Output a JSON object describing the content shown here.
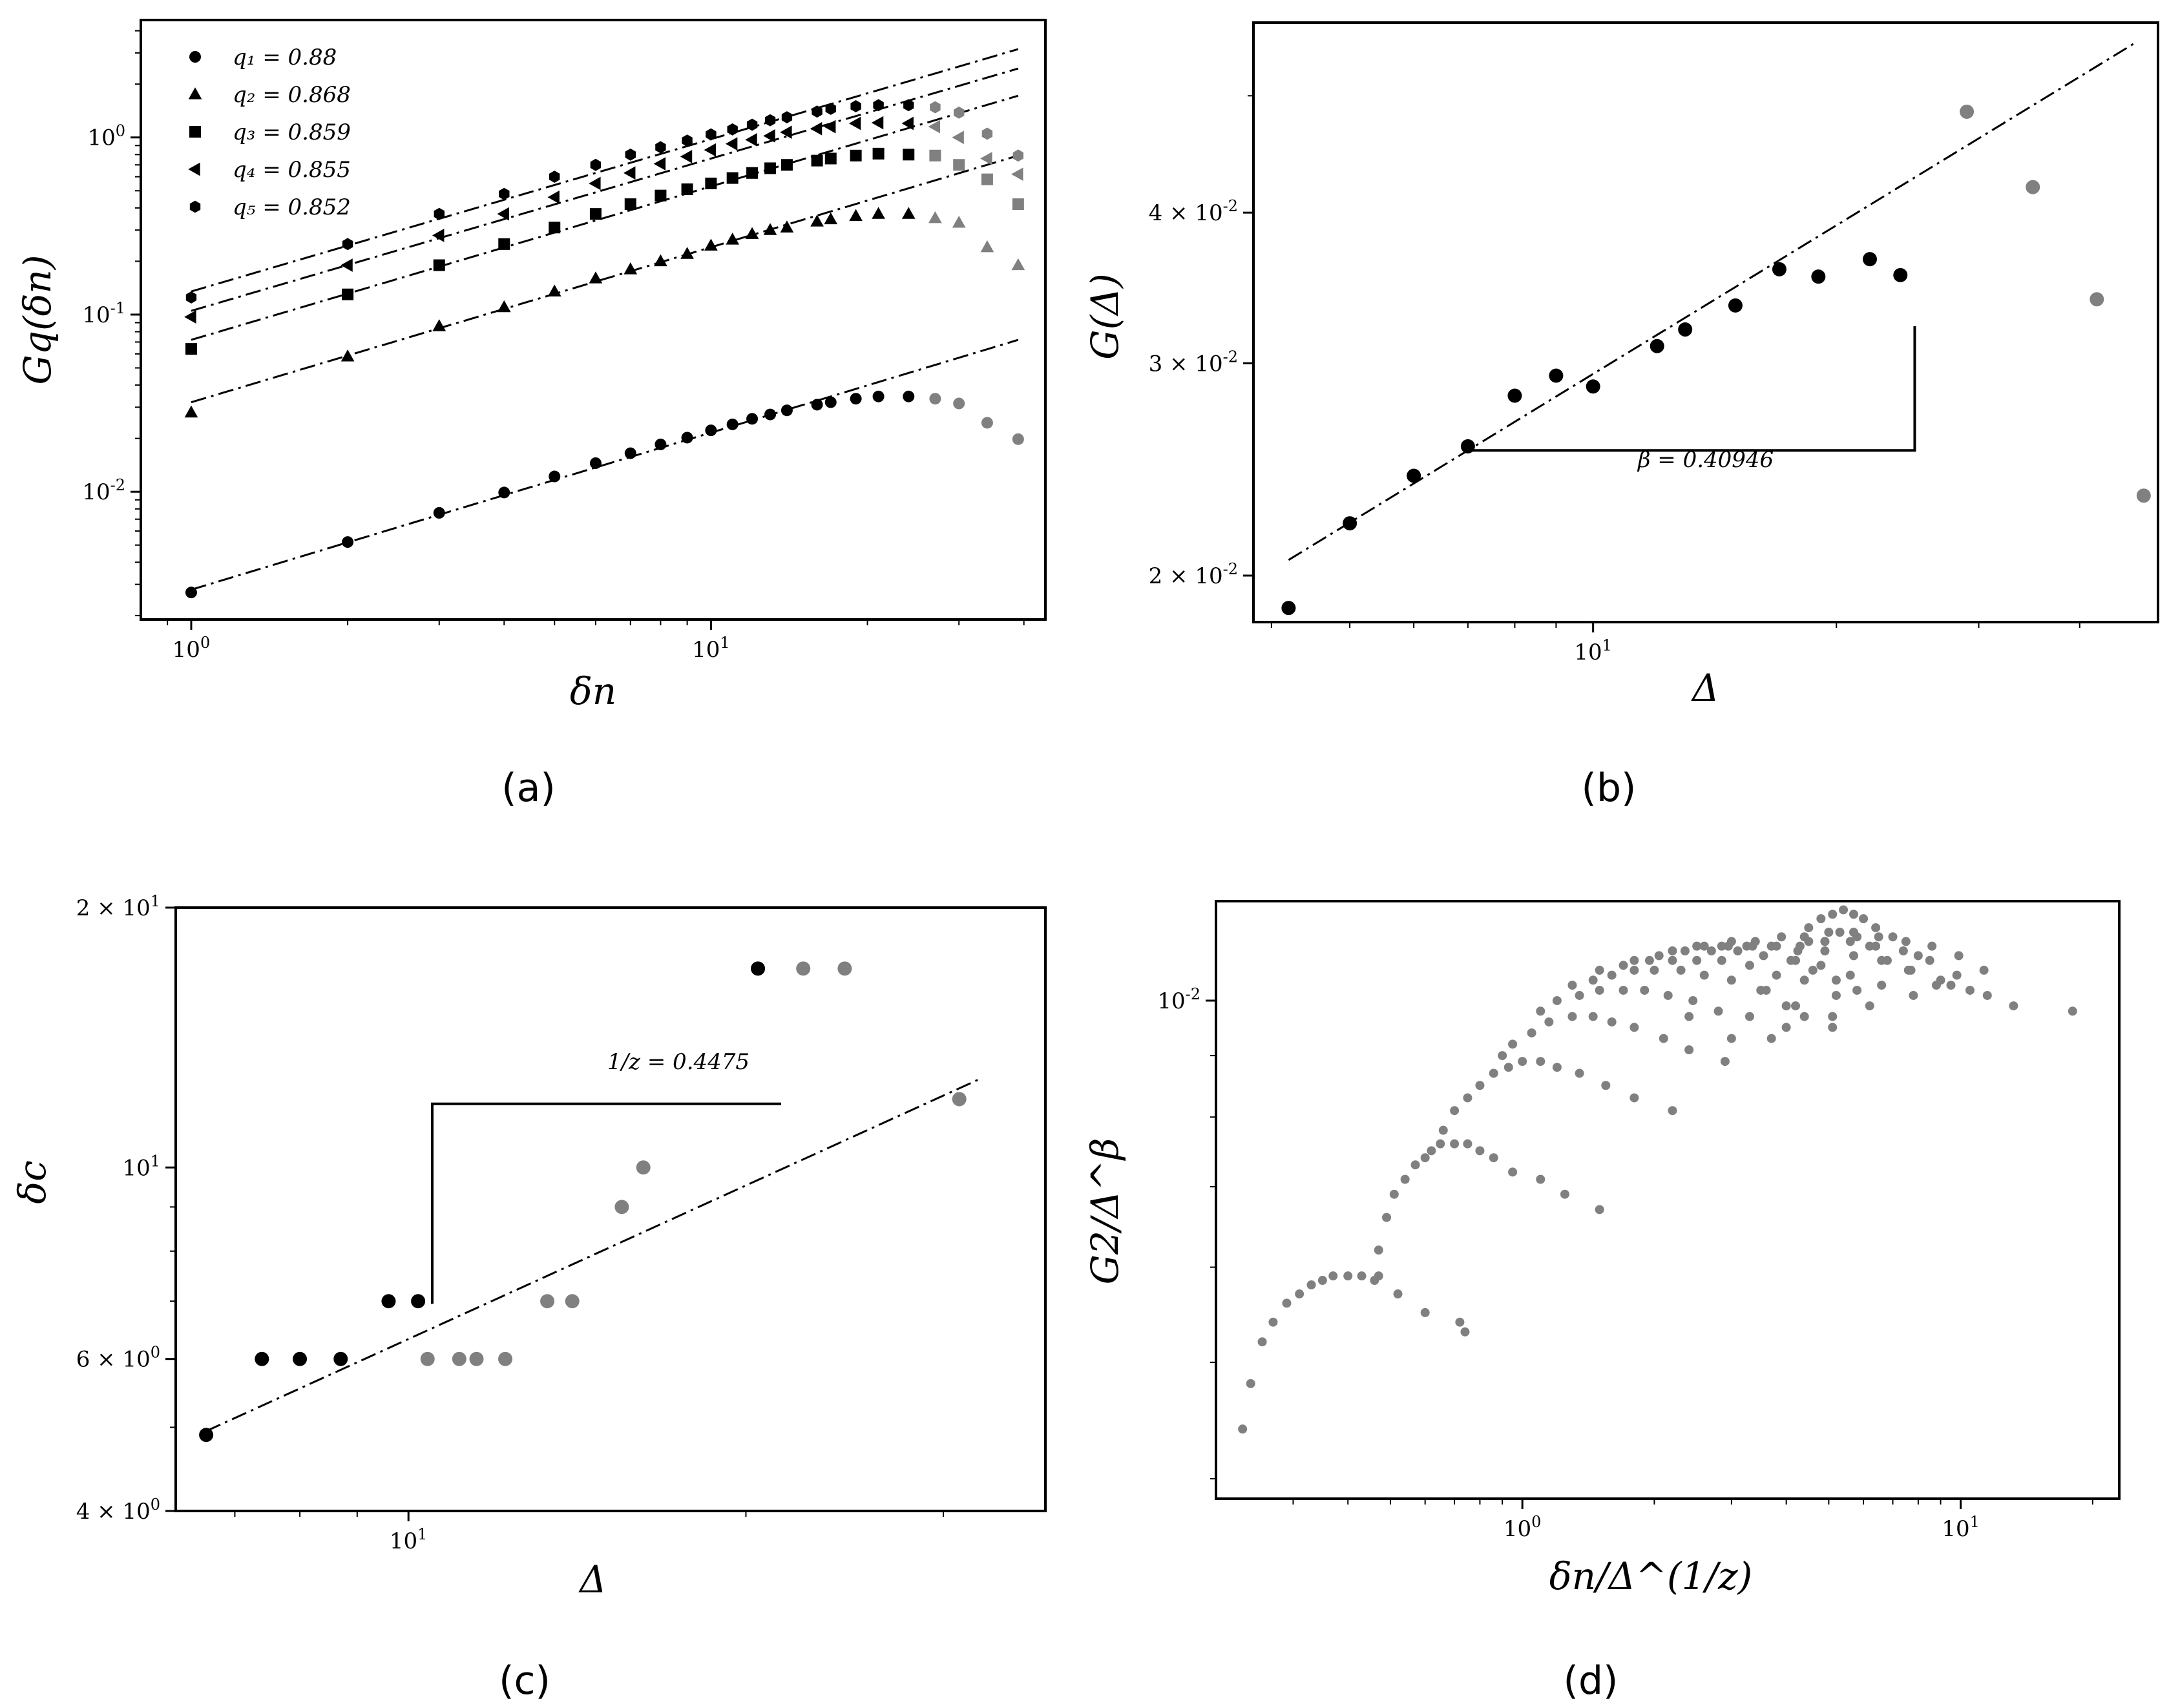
{
  "colors": {
    "black": "#000000",
    "gray": "#808080"
  },
  "chart_data": [
    {
      "id": "a",
      "type": "scatter",
      "panel_label": "(a)",
      "xscale": "log",
      "yscale": "log",
      "xlabel": "δn",
      "ylabel": "Gq(δn)",
      "xlim": [
        0.8,
        44
      ],
      "ylim": [
        0.0019,
        4.6
      ],
      "xticks": [
        {
          "v": 1,
          "label": "10^0"
        },
        {
          "v": 10,
          "label": "10^1"
        }
      ],
      "yticks": [
        {
          "v": 0.01,
          "label": "10^-2"
        },
        {
          "v": 0.1,
          "label": "10^-1"
        },
        {
          "v": 1,
          "label": "10^0"
        }
      ],
      "legend_position": "top-left",
      "x": [
        1,
        2,
        3,
        4,
        5,
        6,
        7,
        8,
        9,
        10,
        11,
        12,
        13,
        14,
        16,
        17,
        19,
        21,
        24,
        27,
        30,
        34,
        39
      ],
      "black_count": 19,
      "series": [
        {
          "name": "q1 = 0.88",
          "legend": {
            "label": "q₁ = 0.88",
            "marker": "circle"
          },
          "marker": "circle",
          "values": [
            0.0027,
            0.0052,
            0.0076,
            0.0099,
            0.0122,
            0.0145,
            0.0165,
            0.0185,
            0.0202,
            0.0222,
            0.024,
            0.0258,
            0.0273,
            0.0288,
            0.031,
            0.032,
            0.0335,
            0.0345,
            0.0345,
            0.0335,
            0.0315,
            0.0245,
            0.0198
          ],
          "fit": {
            "x0": 1,
            "y0": 0.0028,
            "x1": 39,
            "y1": 0.072
          }
        },
        {
          "name": "q2 = 0.868",
          "legend": {
            "label": "q₂ = 0.868",
            "marker": "triangle"
          },
          "marker": "triangle",
          "values": [
            0.028,
            0.058,
            0.086,
            0.11,
            0.135,
            0.16,
            0.18,
            0.2,
            0.22,
            0.245,
            0.265,
            0.285,
            0.3,
            0.31,
            0.335,
            0.345,
            0.36,
            0.37,
            0.37,
            0.35,
            0.33,
            0.24,
            0.19
          ],
          "fit": {
            "x0": 1,
            "y0": 0.032,
            "x1": 39,
            "y1": 0.79
          }
        },
        {
          "name": "q3 = 0.859",
          "legend": {
            "label": "q₃ = 0.859",
            "marker": "square"
          },
          "marker": "square",
          "values": [
            0.064,
            0.13,
            0.19,
            0.25,
            0.31,
            0.37,
            0.42,
            0.47,
            0.51,
            0.55,
            0.59,
            0.63,
            0.67,
            0.7,
            0.74,
            0.76,
            0.79,
            0.81,
            0.8,
            0.79,
            0.7,
            0.58,
            0.42
          ],
          "fit": {
            "x0": 1,
            "y0": 0.072,
            "x1": 39,
            "y1": 1.72
          }
        },
        {
          "name": "q4 = 0.855",
          "legend": {
            "label": "q₄ = 0.855",
            "marker": "left-triangle"
          },
          "marker": "left-triangle",
          "values": [
            0.097,
            0.19,
            0.28,
            0.37,
            0.46,
            0.55,
            0.63,
            0.71,
            0.78,
            0.85,
            0.92,
            0.97,
            1.02,
            1.07,
            1.12,
            1.15,
            1.2,
            1.21,
            1.2,
            1.15,
            1.0,
            0.76,
            0.62
          ],
          "fit": {
            "x0": 1,
            "y0": 0.105,
            "x1": 39,
            "y1": 2.45
          }
        },
        {
          "name": "q5 = 0.852",
          "legend": {
            "label": "q₅ = 0.852",
            "marker": "hexagon"
          },
          "marker": "hexagon",
          "values": [
            0.125,
            0.25,
            0.37,
            0.48,
            0.6,
            0.7,
            0.8,
            0.88,
            0.96,
            1.04,
            1.11,
            1.18,
            1.25,
            1.3,
            1.4,
            1.45,
            1.5,
            1.52,
            1.52,
            1.48,
            1.38,
            1.05,
            0.79
          ],
          "fit": {
            "x0": 1,
            "y0": 0.135,
            "x1": 39,
            "y1": 3.15
          }
        }
      ]
    },
    {
      "id": "b",
      "type": "scatter",
      "panel_label": "(b)",
      "xscale": "log",
      "yscale": "log",
      "xlabel": "Δ",
      "ylabel": "G(Δ)",
      "xlim": [
        3.8,
        50
      ],
      "ylim": [
        0.0183,
        0.0575
      ],
      "xticks": [
        {
          "v": 10,
          "label": "10^1"
        }
      ],
      "yticks": [
        {
          "v": 0.02,
          "label": "2 × 10^-2"
        },
        {
          "v": 0.03,
          "label": "3 × 10^-2"
        },
        {
          "v": 0.04,
          "label": "4 × 10^-2"
        }
      ],
      "annotation": "β = 0.40946",
      "fit": {
        "x0": 7,
        "y0": 0.0254
      },
      "slope": 0.40946,
      "bracket": {
        "x0": 7,
        "x1": 25,
        "y_low": 0.0254,
        "y_high": 0.0322
      },
      "black": {
        "x": [
          4.2,
          5,
          6,
          7,
          8,
          9,
          10,
          12,
          13,
          15,
          17,
          19,
          22,
          24
        ],
        "y": [
          0.0188,
          0.0221,
          0.0242,
          0.0256,
          0.0282,
          0.0293,
          0.0287,
          0.031,
          0.032,
          0.0335,
          0.0359,
          0.0354,
          0.0366,
          0.0355
        ]
      },
      "gray": {
        "x": [
          29,
          35,
          42,
          48
        ],
        "y": [
          0.0485,
          0.042,
          0.0339,
          0.0233
        ]
      }
    },
    {
      "id": "c",
      "type": "scatter",
      "panel_label": "(c)",
      "xscale": "log",
      "yscale": "log",
      "xlabel": "Δ",
      "ylabel": "δc",
      "xlim": [
        6.2,
        37
      ],
      "ylim": [
        4,
        20
      ],
      "xticks": [
        {
          "v": 10,
          "label": "10^1"
        }
      ],
      "yticks": [
        {
          "v": 4,
          "label": "4 × 10^0"
        },
        {
          "v": 6,
          "label": "6 × 10^0"
        },
        {
          "v": 10,
          "label": "10^1"
        },
        {
          "v": 20,
          "label": "2 × 10^1"
        }
      ],
      "annotation": "1/z = 0.4475",
      "fit": {
        "x0": 6.6,
        "y0": 4.95,
        "x1": 32.5,
        "y1": 12.7
      },
      "bracket": {
        "x0": 10.5,
        "x1": 21.5,
        "y_low": 6.95,
        "y_high": 11.85
      },
      "black": {
        "x": [
          6.6,
          7.4,
          8,
          8.7,
          9.6,
          10.2,
          20.5
        ],
        "y": [
          4.9,
          6,
          6,
          6,
          7,
          7,
          17
        ]
      },
      "gray": {
        "x": [
          10.4,
          11.1,
          11.5,
          12.2,
          13.3,
          14,
          15.5,
          16.2,
          20.5,
          22.5,
          24.5,
          31
        ],
        "y": [
          6,
          6,
          6,
          6,
          7,
          7,
          9,
          10,
          17,
          17,
          17,
          12
        ]
      }
    },
    {
      "id": "d",
      "type": "scatter",
      "panel_label": "(d)",
      "xscale": "log",
      "yscale": "log",
      "xlabel": "δn/Δ^(1/z)",
      "ylabel": "G2/Δ^β",
      "xlim": [
        0.2,
        23
      ],
      "ylim": [
        0.00385,
        0.0121
      ],
      "xticks": [
        {
          "v": 1,
          "label": "10^0"
        },
        {
          "v": 10,
          "label": "10^1"
        }
      ],
      "yticks": [
        {
          "v": 0.01,
          "label": "10^-2"
        }
      ],
      "points": [
        [
          0.23,
          0.0044
        ],
        [
          0.24,
          0.0048
        ],
        [
          0.255,
          0.0052
        ],
        [
          0.27,
          0.0054
        ],
        [
          0.29,
          0.0056
        ],
        [
          0.31,
          0.0057
        ],
        [
          0.33,
          0.0058
        ],
        [
          0.35,
          0.00585
        ],
        [
          0.37,
          0.0059
        ],
        [
          0.4,
          0.0059
        ],
        [
          0.43,
          0.0059
        ],
        [
          0.46,
          0.00585
        ],
        [
          0.47,
          0.0059
        ],
        [
          0.52,
          0.0057
        ],
        [
          0.6,
          0.0055
        ],
        [
          0.72,
          0.0054
        ],
        [
          0.74,
          0.0053
        ],
        [
          0.47,
          0.0062
        ],
        [
          0.49,
          0.0066
        ],
        [
          0.51,
          0.0069
        ],
        [
          0.54,
          0.0071
        ],
        [
          0.57,
          0.0073
        ],
        [
          0.6,
          0.0074
        ],
        [
          0.62,
          0.0075
        ],
        [
          0.65,
          0.0076
        ],
        [
          0.7,
          0.0076
        ],
        [
          0.75,
          0.0076
        ],
        [
          0.8,
          0.0075
        ],
        [
          0.86,
          0.0074
        ],
        [
          0.95,
          0.0072
        ],
        [
          1.1,
          0.0071
        ],
        [
          1.25,
          0.0069
        ],
        [
          1.5,
          0.0067
        ],
        [
          0.66,
          0.0078
        ],
        [
          0.7,
          0.0081
        ],
        [
          0.75,
          0.0083
        ],
        [
          0.8,
          0.0085
        ],
        [
          0.86,
          0.0087
        ],
        [
          0.93,
          0.0088
        ],
        [
          1.0,
          0.0089
        ],
        [
          1.1,
          0.0089
        ],
        [
          1.2,
          0.0088
        ],
        [
          1.35,
          0.0087
        ],
        [
          1.55,
          0.0085
        ],
        [
          1.8,
          0.0083
        ],
        [
          2.2,
          0.0081
        ],
        [
          0.9,
          0.009
        ],
        [
          0.95,
          0.0092
        ],
        [
          1.05,
          0.0094
        ],
        [
          1.15,
          0.0096
        ],
        [
          1.3,
          0.0097
        ],
        [
          1.45,
          0.0097
        ],
        [
          1.6,
          0.0096
        ],
        [
          1.8,
          0.0095
        ],
        [
          2.1,
          0.0093
        ],
        [
          2.4,
          0.0091
        ],
        [
          2.9,
          0.0089
        ],
        [
          1.1,
          0.0098
        ],
        [
          1.2,
          0.01
        ],
        [
          1.35,
          0.0101
        ],
        [
          1.5,
          0.0102
        ],
        [
          1.7,
          0.0102
        ],
        [
          1.9,
          0.0102
        ],
        [
          2.15,
          0.0101
        ],
        [
          2.45,
          0.01
        ],
        [
          2.8,
          0.0098
        ],
        [
          3.3,
          0.0097
        ],
        [
          4.0,
          0.0095
        ],
        [
          1.3,
          0.0103
        ],
        [
          1.45,
          0.0104
        ],
        [
          1.6,
          0.0105
        ],
        [
          1.8,
          0.0106
        ],
        [
          2.0,
          0.0106
        ],
        [
          2.3,
          0.0106
        ],
        [
          2.6,
          0.0105
        ],
        [
          3.0,
          0.0104
        ],
        [
          3.5,
          0.0102
        ],
        [
          4.2,
          0.0099
        ],
        [
          5.1,
          0.0097
        ],
        [
          1.5,
          0.0106
        ],
        [
          1.7,
          0.0107
        ],
        [
          1.95,
          0.0108
        ],
        [
          2.2,
          0.0108
        ],
        [
          2.5,
          0.0108
        ],
        [
          2.85,
          0.0108
        ],
        [
          3.3,
          0.0107
        ],
        [
          3.8,
          0.0105
        ],
        [
          4.4,
          0.0104
        ],
        [
          5.2,
          0.0101
        ],
        [
          6.2,
          0.0099
        ],
        [
          1.8,
          0.0108
        ],
        [
          2.05,
          0.0109
        ],
        [
          2.35,
          0.011
        ],
        [
          2.7,
          0.011
        ],
        [
          3.1,
          0.011
        ],
        [
          3.55,
          0.0109
        ],
        [
          4.1,
          0.0108
        ],
        [
          4.8,
          0.0107
        ],
        [
          5.6,
          0.0105
        ],
        [
          6.6,
          0.0103
        ],
        [
          7.8,
          0.0101
        ],
        [
          2.2,
          0.011
        ],
        [
          2.5,
          0.0111
        ],
        [
          2.85,
          0.0111
        ],
        [
          3.25,
          0.0111
        ],
        [
          3.7,
          0.0111
        ],
        [
          4.25,
          0.011
        ],
        [
          4.9,
          0.011
        ],
        [
          5.7,
          0.0109
        ],
        [
          6.6,
          0.0108
        ],
        [
          7.7,
          0.0106
        ],
        [
          9.0,
          0.0104
        ],
        [
          2.6,
          0.0111
        ],
        [
          2.95,
          0.0111
        ],
        [
          3.35,
          0.0111
        ],
        [
          3.8,
          0.0111
        ],
        [
          4.3,
          0.0111
        ],
        [
          4.9,
          0.0112
        ],
        [
          5.6,
          0.0112
        ],
        [
          6.4,
          0.0111
        ],
        [
          7.4,
          0.011
        ],
        [
          8.5,
          0.0108
        ],
        [
          9.8,
          0.0105
        ],
        [
          3.0,
          0.0112
        ],
        [
          3.4,
          0.0112
        ],
        [
          3.9,
          0.0113
        ],
        [
          4.4,
          0.0113
        ],
        [
          5.0,
          0.0114
        ],
        [
          5.7,
          0.0114
        ],
        [
          6.5,
          0.0113
        ],
        [
          7.5,
          0.0112
        ],
        [
          8.6,
          0.0111
        ],
        [
          9.9,
          0.0109
        ],
        [
          11.3,
          0.0106
        ],
        [
          4.5,
          0.0115
        ],
        [
          4.8,
          0.0117
        ],
        [
          5.1,
          0.0118
        ],
        [
          5.4,
          0.0119
        ],
        [
          5.7,
          0.0118
        ],
        [
          6.0,
          0.0117
        ],
        [
          6.4,
          0.0115
        ],
        [
          7.0,
          0.0113
        ],
        [
          8.0,
          0.0109
        ],
        [
          9.5,
          0.0103
        ],
        [
          10.5,
          0.0102
        ],
        [
          11.5,
          0.0101
        ],
        [
          13.2,
          0.0099
        ],
        [
          18.0,
          0.0098
        ],
        [
          4.5,
          0.0112
        ],
        [
          4.9,
          0.0112
        ],
        [
          5.3,
          0.0114
        ],
        [
          5.8,
          0.0113
        ],
        [
          6.2,
          0.0111
        ],
        [
          6.8,
          0.0108
        ],
        [
          7.6,
          0.0106
        ],
        [
          8.8,
          0.0103
        ],
        [
          4.2,
          0.0108
        ],
        [
          4.6,
          0.0106
        ],
        [
          5.2,
          0.0104
        ],
        [
          5.8,
          0.0102
        ],
        [
          3.6,
          0.0102
        ],
        [
          4.0,
          0.0099
        ],
        [
          4.4,
          0.0097
        ],
        [
          5.1,
          0.0095
        ],
        [
          2.4,
          0.0097
        ],
        [
          3.0,
          0.0093
        ],
        [
          3.7,
          0.0093
        ]
      ]
    }
  ]
}
